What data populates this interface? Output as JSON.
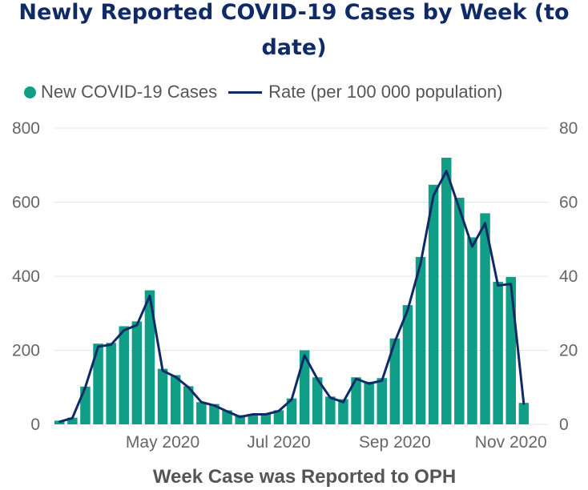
{
  "title_line1": "Newly Reported COVID-19 Cases by Week (to",
  "title_line2": "date)",
  "legend": {
    "cases": "New COVID-19 Cases",
    "rate": "Rate (per 100 000 population)"
  },
  "colors": {
    "bars": "#119e86",
    "line": "#102a68",
    "title": "#102a68",
    "grid": "#e5e5e5"
  },
  "chart_data": {
    "type": "bar",
    "title": "Newly Reported COVID-19 Cases by Week (to date)",
    "xlabel": "Week Case was Reported to OPH",
    "ylabel": "",
    "ylim": [
      0,
      800
    ],
    "y2lim": [
      0,
      80
    ],
    "y_ticks": [
      "0",
      "200",
      "400",
      "600",
      "800"
    ],
    "y2_ticks": [
      "0",
      "20",
      "40",
      "60",
      "80"
    ],
    "x_tick_labels": [
      {
        "label": "May 2020",
        "week_index": 8
      },
      {
        "label": "Jul 2020",
        "week_index": 17
      },
      {
        "label": "Sep 2020",
        "week_index": 26
      },
      {
        "label": "Nov 2020",
        "week_index": 35
      }
    ],
    "legend_position": "top",
    "grid": true,
    "series": [
      {
        "name": "New COVID-19 Cases",
        "type": "bar",
        "axis": "left",
        "values": [
          10,
          18,
          102,
          218,
          220,
          265,
          278,
          362,
          150,
          133,
          103,
          60,
          55,
          38,
          25,
          28,
          30,
          38,
          70,
          200,
          127,
          75,
          68,
          127,
          115,
          125,
          232,
          322,
          452,
          647,
          720,
          612,
          505,
          570,
          385,
          398,
          58
        ]
      },
      {
        "name": "Rate (per 100 000 population)",
        "type": "line",
        "axis": "right",
        "values": [
          0.7,
          1.7,
          10.0,
          21.0,
          21.5,
          25.4,
          26.8,
          34.7,
          14.5,
          12.8,
          10.0,
          6.0,
          5.1,
          3.5,
          2.0,
          2.7,
          2.7,
          3.6,
          6.7,
          18.6,
          12.2,
          7.2,
          6.0,
          12.3,
          11.0,
          11.8,
          22.3,
          30.9,
          43.5,
          61.8,
          68.4,
          58.3,
          48.0,
          54.3,
          37.5,
          37.9,
          5.5
        ]
      }
    ]
  }
}
